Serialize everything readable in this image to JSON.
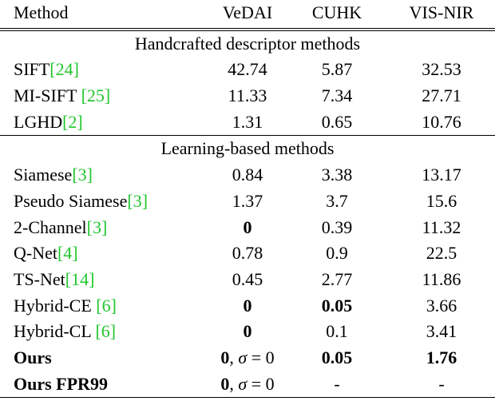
{
  "header": {
    "method": "Method",
    "col1": "VeDAI",
    "col2": "CUHK",
    "col3": "VIS-NIR"
  },
  "sections": [
    {
      "title": "Handcrafted descriptor methods",
      "rows": [
        {
          "name": "SIFT",
          "ref": "[24]",
          "v1": "42.74",
          "v2": "5.87",
          "v3": "32.53"
        },
        {
          "name": "MI-SIFT ",
          "ref": "[25]",
          "v1": "11.33",
          "v2": "7.34",
          "v3": "27.71"
        },
        {
          "name": "LGHD",
          "ref": "[2]",
          "v1": "1.31",
          "v2": "0.65",
          "v3": "10.76"
        }
      ]
    },
    {
      "title": "Learning-based methods",
      "rows": [
        {
          "name": "Siamese",
          "ref": "[3]",
          "v1": "0.84",
          "v2": "3.38",
          "v3": "13.17"
        },
        {
          "name": "Pseudo Siamese",
          "ref": "[3]",
          "v1": "1.37",
          "v2": "3.7",
          "v3": "15.6"
        },
        {
          "name": "2-Channel",
          "ref": "[3]",
          "v1": "0",
          "v2": "0.39",
          "v3": "11.32"
        },
        {
          "name": "Q-Net",
          "ref": "[4]",
          "v1": "0.78",
          "v2": "0.9",
          "v3": "22.5"
        },
        {
          "name": "TS-Net",
          "ref": "[14]",
          "v1": "0.45",
          "v2": "2.77",
          "v3": "11.86"
        },
        {
          "name": "Hybrid-CE ",
          "ref": "[6]",
          "v1": "0",
          "v2": "0.05",
          "v3": "3.66"
        },
        {
          "name": "Hybrid-CL ",
          "ref": "[6]",
          "v1": "0",
          "v2": "0.1",
          "v3": "3.41"
        }
      ]
    }
  ],
  "ours": [
    {
      "name": "Ours",
      "v1_val": "0",
      "v1_sep": ", ",
      "v1_sigma": "σ",
      "v1_eq": " = 0",
      "v2": "0.05",
      "v3": "1.76"
    },
    {
      "name": "Ours FPR99",
      "v1_val": "0",
      "v1_sep": ", ",
      "v1_sigma": "σ",
      "v1_eq": " = 0",
      "v2": "-",
      "v3": "-"
    }
  ]
}
